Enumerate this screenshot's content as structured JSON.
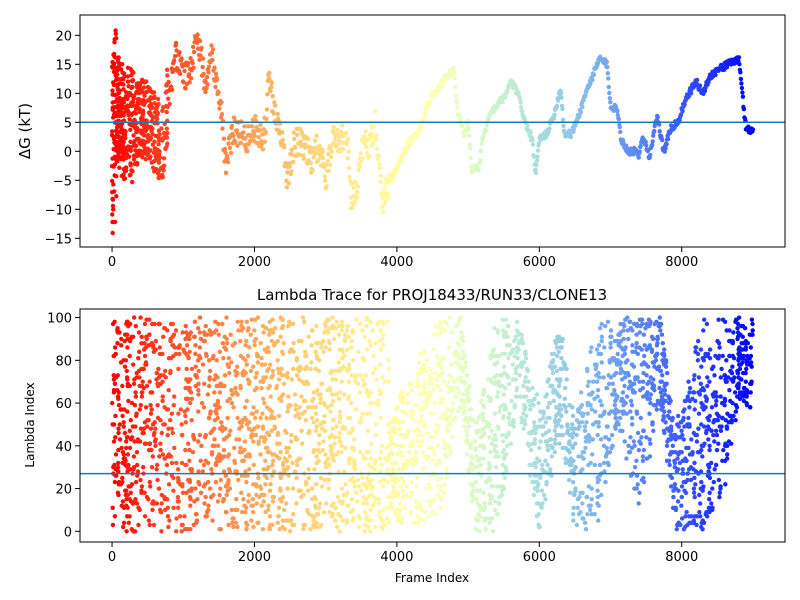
{
  "chart_data": [
    {
      "type": "scatter",
      "title": "",
      "xlabel": "",
      "ylabel": "ΔG (kT)",
      "xlim": [
        -450,
        9450
      ],
      "ylim": [
        -16.5,
        23.5
      ],
      "xticks": [
        0,
        2000,
        4000,
        6000,
        8000
      ],
      "yticks": [
        -15,
        -10,
        -5,
        0,
        5,
        10,
        15,
        20
      ],
      "hline": 5,
      "hline_color": "#1f77b4",
      "colormap": "rainbow (reversed by frame index: red at 0 → violet at end)",
      "x_max": 9000,
      "trace": [
        [
          0,
          0
        ],
        [
          70,
          8
        ],
        [
          150,
          5
        ],
        [
          300,
          4
        ],
        [
          450,
          6
        ],
        [
          600,
          3
        ],
        [
          700,
          1
        ],
        [
          800,
          10
        ],
        [
          900,
          17
        ],
        [
          1000,
          13
        ],
        [
          1100,
          14
        ],
        [
          1200,
          20
        ],
        [
          1300,
          12
        ],
        [
          1400,
          17
        ],
        [
          1500,
          10
        ],
        [
          1550,
          5
        ],
        [
          1600,
          -3
        ],
        [
          1700,
          4
        ],
        [
          1800,
          3
        ],
        [
          1900,
          2
        ],
        [
          2000,
          4
        ],
        [
          2100,
          2
        ],
        [
          2150,
          4
        ],
        [
          2200,
          12
        ],
        [
          2300,
          6
        ],
        [
          2400,
          2
        ],
        [
          2450,
          -6
        ],
        [
          2550,
          1
        ],
        [
          2650,
          2
        ],
        [
          2750,
          0
        ],
        [
          2800,
          -2
        ],
        [
          2900,
          1
        ],
        [
          3000,
          -5
        ],
        [
          3100,
          3
        ],
        [
          3200,
          2
        ],
        [
          3300,
          3
        ],
        [
          3350,
          -8
        ],
        [
          3450,
          -6
        ],
        [
          3500,
          1
        ],
        [
          3600,
          1
        ],
        [
          3700,
          5
        ],
        [
          3750,
          -2
        ],
        [
          3800,
          -9
        ],
        [
          3900,
          -5
        ],
        [
          4000,
          -3
        ],
        [
          4100,
          0
        ],
        [
          4200,
          2
        ],
        [
          4300,
          3
        ],
        [
          4400,
          7
        ],
        [
          4500,
          10
        ],
        [
          4600,
          11
        ],
        [
          4700,
          13
        ],
        [
          4800,
          14
        ],
        [
          4850,
          7
        ],
        [
          4950,
          3
        ],
        [
          5000,
          5
        ],
        [
          5050,
          -3
        ],
        [
          5150,
          -3
        ],
        [
          5200,
          2
        ],
        [
          5300,
          6
        ],
        [
          5400,
          8
        ],
        [
          5500,
          9
        ],
        [
          5600,
          12
        ],
        [
          5700,
          10
        ],
        [
          5800,
          5
        ],
        [
          5900,
          2
        ],
        [
          5950,
          -4
        ],
        [
          6000,
          2
        ],
        [
          6100,
          3
        ],
        [
          6200,
          6
        ],
        [
          6300,
          11
        ],
        [
          6350,
          3
        ],
        [
          6450,
          3
        ],
        [
          6550,
          6
        ],
        [
          6650,
          10
        ],
        [
          6750,
          13
        ],
        [
          6850,
          16
        ],
        [
          6950,
          15
        ],
        [
          7000,
          8
        ],
        [
          7100,
          7
        ],
        [
          7150,
          2
        ],
        [
          7250,
          0
        ],
        [
          7350,
          0
        ],
        [
          7400,
          -1
        ],
        [
          7450,
          3
        ],
        [
          7550,
          -1
        ],
        [
          7650,
          6
        ],
        [
          7750,
          0
        ],
        [
          7850,
          4
        ],
        [
          7950,
          5
        ],
        [
          8000,
          7
        ],
        [
          8100,
          10
        ],
        [
          8200,
          12
        ],
        [
          8300,
          10
        ],
        [
          8400,
          13
        ],
        [
          8500,
          14
        ],
        [
          8650,
          15
        ],
        [
          8800,
          16
        ],
        [
          8900,
          4
        ],
        [
          9000,
          3.5
        ]
      ]
    },
    {
      "type": "scatter",
      "title": "Lambda Trace for PROJ18433/RUN33/CLONE13",
      "xlabel": "Frame Index",
      "ylabel": "Lambda Index",
      "xlim": [
        -450,
        9450
      ],
      "ylim": [
        -5,
        104
      ],
      "xticks": [
        0,
        2000,
        4000,
        6000,
        8000
      ],
      "yticks": [
        0,
        20,
        40,
        60,
        80,
        100
      ],
      "hline": 27,
      "hline_color": "#1f77b4",
      "colormap": "rainbow (reversed by frame index: red at 0 → violet at end)",
      "x_max": 9000,
      "range_bands": [
        [
          0,
          0,
          100
        ],
        [
          3900,
          0,
          55
        ],
        [
          4600,
          5,
          100
        ],
        [
          4900,
          60,
          100
        ],
        [
          5100,
          0,
          50
        ],
        [
          5400,
          0,
          100
        ],
        [
          5700,
          60,
          100
        ],
        [
          6000,
          0,
          60
        ],
        [
          6300,
          40,
          100
        ],
        [
          6500,
          0,
          50
        ],
        [
          6800,
          0,
          100
        ],
        [
          7100,
          50,
          100
        ],
        [
          7400,
          10,
          100
        ],
        [
          7700,
          60,
          100
        ],
        [
          7900,
          0,
          50
        ],
        [
          8300,
          0,
          100
        ],
        [
          8600,
          20,
          100
        ],
        [
          8800,
          60,
          100
        ],
        [
          9000,
          55,
          100
        ]
      ]
    }
  ]
}
